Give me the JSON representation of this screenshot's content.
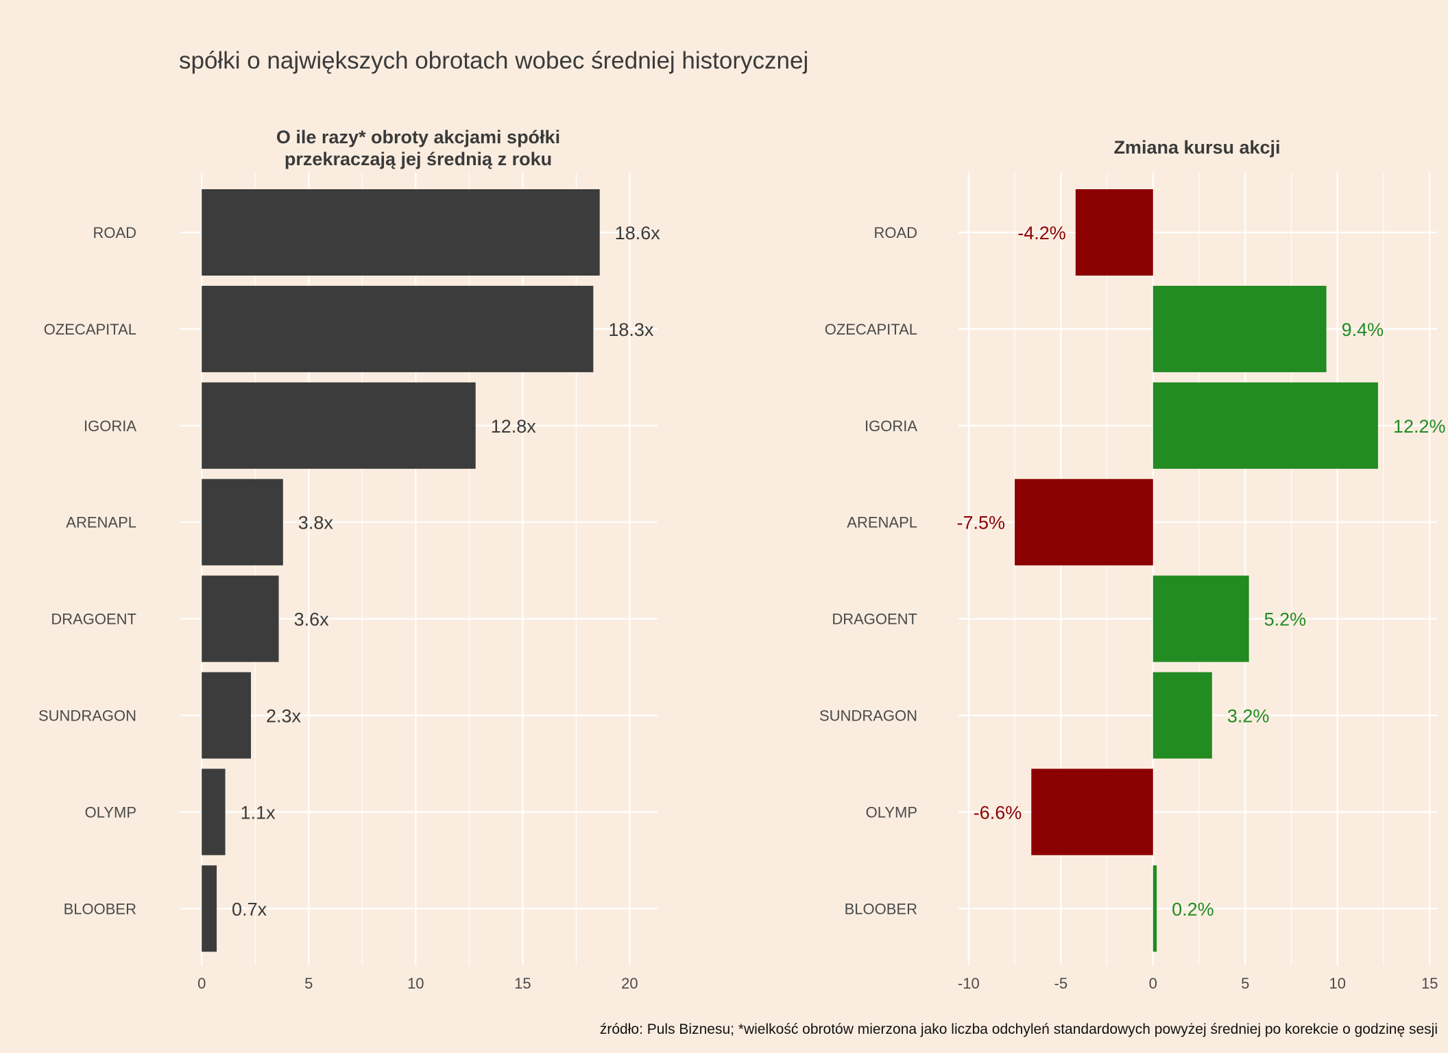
{
  "title": "spółki o największych obrotach wobec średniej historycznej",
  "caption": "źródło: Puls Biznesu; *wielkość obrotów mierzona jako liczba odchyleń standardowych powyżej średniej po korekcie o godzinę sesji",
  "colors": {
    "background": "#FAEDE0",
    "bar_dark": "#3C3C3C",
    "positive": "#228B22",
    "negative": "#8B0000",
    "text": "#3A3A3A"
  },
  "chart_data": [
    {
      "type": "bar",
      "orientation": "horizontal",
      "title_lines": [
        "O ile razy* obroty akcjami spółki",
        "przekraczają jej średnią z roku"
      ],
      "categories": [
        "ROAD",
        "OZECAPITAL",
        "IGORIA",
        "ARENAPL",
        "DRAGOENT",
        "SUNDRAGON",
        "OLYMP",
        "BLOOBER"
      ],
      "values": [
        18.6,
        18.3,
        12.8,
        3.8,
        3.6,
        2.3,
        1.1,
        0.7
      ],
      "labels": [
        "18.6x",
        "18.3x",
        "12.8x",
        "3.8x",
        "3.6x",
        "2.3x",
        "1.1x",
        "0.7x"
      ],
      "xlim": [
        -1,
        21.3
      ],
      "xticks": [
        0,
        5,
        10,
        15,
        20
      ],
      "xtick_labels": [
        "0",
        "5",
        "10",
        "15",
        "20"
      ],
      "minor_ticks": [
        2.5,
        7.5,
        12.5,
        17.5
      ],
      "xlabel": "",
      "ylabel": "",
      "grid": true
    },
    {
      "type": "bar",
      "orientation": "horizontal",
      "title_lines": [
        "Zmiana kursu akcji"
      ],
      "categories": [
        "ROAD",
        "OZECAPITAL",
        "IGORIA",
        "ARENAPL",
        "DRAGOENT",
        "SUNDRAGON",
        "OLYMP",
        "BLOOBER"
      ],
      "values": [
        -4.2,
        9.4,
        12.2,
        -7.5,
        5.2,
        3.2,
        -6.6,
        0.2
      ],
      "labels": [
        "-4.2%",
        "9.4%",
        "12.2%",
        "-7.5%",
        "5.2%",
        "3.2%",
        "-6.6%",
        "0.2%"
      ],
      "xlim": [
        -10.55,
        15.4
      ],
      "xticks": [
        -10,
        -5,
        0,
        5,
        10,
        15
      ],
      "xtick_labels": [
        "-10",
        "-5",
        "0",
        "5",
        "10",
        "15"
      ],
      "minor_ticks": [
        -7.5,
        -2.5,
        2.5,
        7.5,
        12.5
      ],
      "xlabel": "",
      "ylabel": "",
      "grid": true
    }
  ]
}
